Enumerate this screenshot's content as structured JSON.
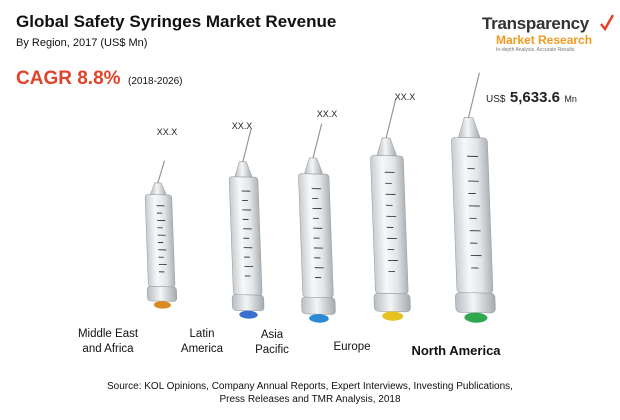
{
  "header": {
    "title": "Global Safety Syringes Market Revenue",
    "subtitle": "By Region, 2017 (US$ Mn)",
    "cagr_label": "CAGR 8.8%",
    "cagr_period": "(2018-2026)"
  },
  "logo": {
    "word1": "Transparency",
    "word2": "Market Research",
    "tagline": "In-depth Analysis. Accurate Results",
    "icon": "checkmark-icon",
    "colors": {
      "primary": "#333333",
      "accent": "#f29a1f"
    }
  },
  "chart_data": {
    "type": "bar",
    "title": "Global Safety Syringes Market Revenue",
    "subtitle": "By Region, 2017 (US$ Mn)",
    "categories": [
      "Middle East and Africa",
      "Latin America",
      "Asia Pacific",
      "Europe",
      "North America"
    ],
    "category_lines": [
      [
        "Middle East",
        "and Africa"
      ],
      [
        "Latin",
        "America"
      ],
      [
        "Asia",
        "Pacific"
      ],
      [
        "Europe"
      ],
      [
        "North America"
      ]
    ],
    "value_labels": [
      "XX.X",
      "XX.X",
      "XX.X",
      "XX.X",
      "5,633.6"
    ],
    "highlight": {
      "currency": "US$",
      "value": "5,633.6",
      "unit": "Mn"
    },
    "relative_size": [
      0.42,
      0.55,
      0.66,
      0.8,
      1.0
    ],
    "cap_colors": [
      "#d98b1f",
      "#3a6fd0",
      "#2a8ad6",
      "#e6c21e",
      "#2fa84f"
    ],
    "accent_color": "#e1432a",
    "bar_style": "syringe",
    "xlabel": "",
    "ylabel": ""
  },
  "footer": {
    "source_line1": "Source: KOL Opinions, Company Annual Reports, Expert Interviews, Investing Publications,",
    "source_line2": "Press Releases and TMR Analysis, 2018"
  }
}
